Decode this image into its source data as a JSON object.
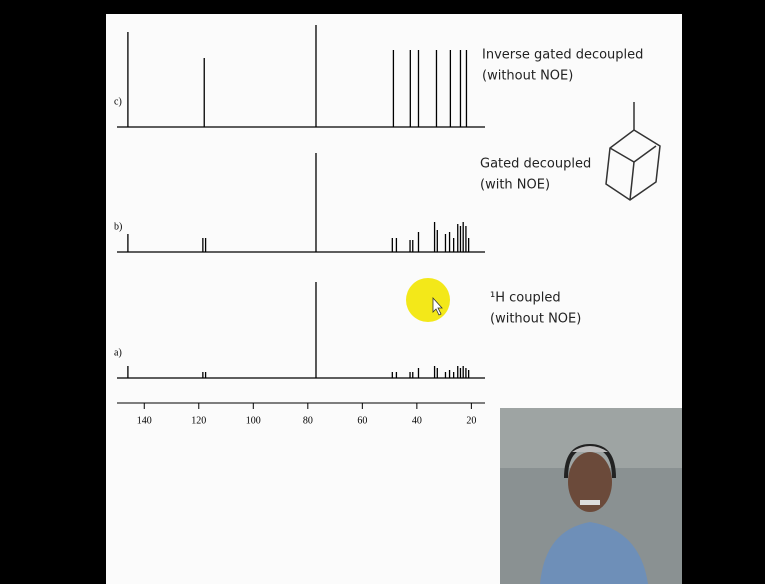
{
  "slide": {
    "axis": {
      "xlim": [
        150,
        15
      ],
      "ticks": [
        140,
        120,
        100,
        80,
        60,
        40,
        20
      ]
    },
    "spectra": [
      {
        "label": "c)",
        "caption": [
          "Inverse gated decoupled",
          "(without NOE)"
        ],
        "ppm": [
          146,
          118,
          77,
          48.6,
          42.4,
          39.4,
          32.8,
          27.7,
          24,
          21.8
        ],
        "height": [
          95,
          69,
          102,
          77,
          77,
          77,
          77,
          77,
          77,
          77
        ]
      },
      {
        "label": "b)",
        "caption": [
          "Gated decoupled",
          "(with NOE)"
        ],
        "ppm": [
          146,
          118.5,
          117.5,
          77,
          49,
          47.5,
          42.5,
          41.5,
          39.4,
          33.5,
          32.5,
          29.5,
          28,
          26.5,
          25,
          24,
          23,
          22,
          21
        ],
        "height": [
          18,
          14,
          14,
          99,
          14,
          14,
          12,
          12,
          20,
          30,
          22,
          18,
          20,
          14,
          28,
          26,
          30,
          26,
          14
        ]
      },
      {
        "label": "a)",
        "caption": [
          "¹H coupled",
          "(without NOE)"
        ],
        "ppm": [
          146,
          118.5,
          117.5,
          77,
          49,
          47.5,
          42.5,
          41.5,
          39.4,
          33.5,
          32.5,
          29.5,
          28,
          26.5,
          25,
          24,
          23,
          22,
          21
        ],
        "height": [
          12,
          6,
          6,
          96,
          6,
          6,
          6,
          6,
          10,
          12,
          10,
          6,
          8,
          6,
          12,
          10,
          12,
          10,
          8
        ]
      }
    ]
  }
}
